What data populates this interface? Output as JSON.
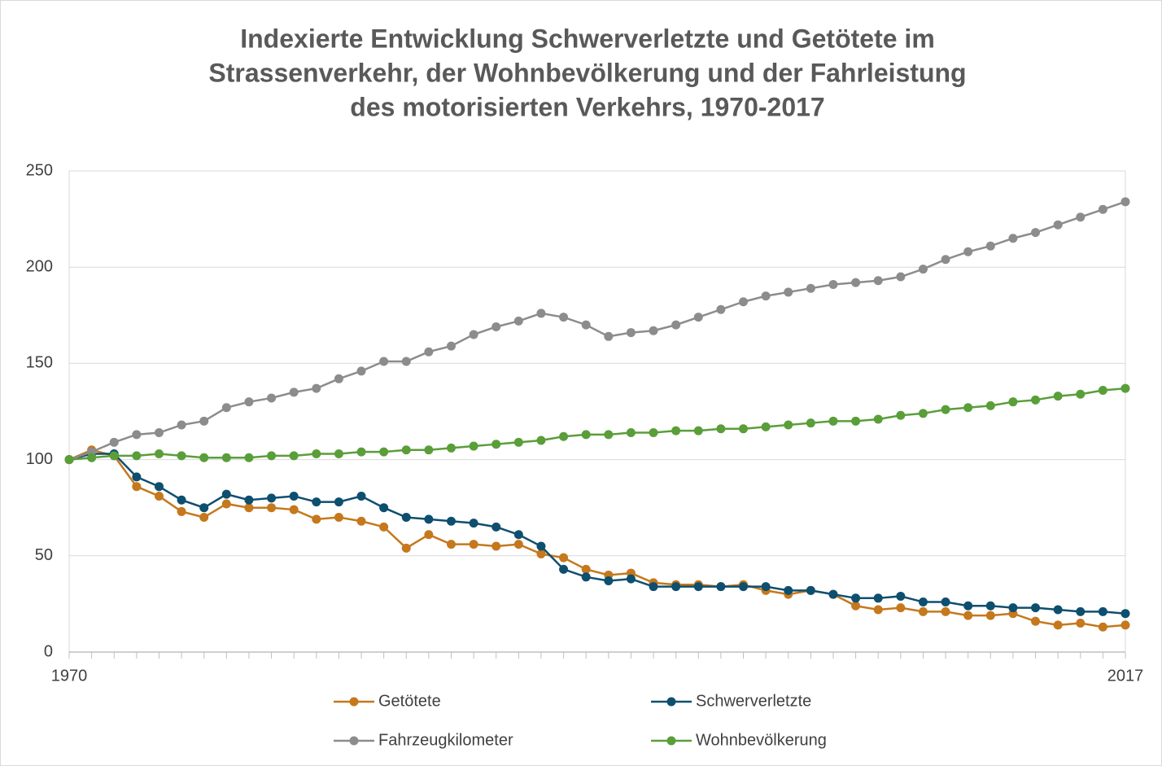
{
  "chart_data": {
    "type": "line",
    "title": [
      "Indexierte Entwicklung Schwerverletzte und Getötete im",
      "Strassenverkehr, der Wohnbevölkerung und der Fahrleistung",
      "des motorisierten Verkehrs, 1970-2017"
    ],
    "x": [
      1970,
      1971,
      1972,
      1973,
      1974,
      1975,
      1976,
      1977,
      1978,
      1979,
      1980,
      1981,
      1982,
      1983,
      1984,
      1985,
      1986,
      1987,
      1988,
      1989,
      1990,
      1991,
      1992,
      1993,
      1994,
      1995,
      1996,
      1997,
      1998,
      1999,
      2000,
      2001,
      2002,
      2003,
      2004,
      2005,
      2006,
      2007,
      2008,
      2009,
      2010,
      2011,
      2012,
      2013,
      2014,
      2015,
      2016,
      2017
    ],
    "xlim": [
      1970,
      2017
    ],
    "xticks": [
      1970,
      2017
    ],
    "ylim": [
      0,
      250
    ],
    "yticks": [
      0,
      50,
      100,
      150,
      200,
      250
    ],
    "grid": true,
    "series": [
      {
        "name": "Getötete",
        "color": "#c5781c",
        "values": [
          100,
          105,
          102,
          86,
          81,
          73,
          70,
          77,
          75,
          75,
          74,
          69,
          70,
          68,
          65,
          54,
          61,
          56,
          56,
          55,
          56,
          51,
          49,
          43,
          40,
          41,
          36,
          35,
          35,
          34,
          35,
          32,
          30,
          32,
          30,
          24,
          22,
          23,
          21,
          21,
          19,
          19,
          20,
          16,
          14,
          15,
          13,
          14
        ]
      },
      {
        "name": "Schwerverletzte",
        "color": "#0e4f6f",
        "values": [
          100,
          103,
          103,
          91,
          86,
          79,
          75,
          82,
          79,
          80,
          81,
          78,
          78,
          81,
          75,
          70,
          69,
          68,
          67,
          65,
          61,
          55,
          43,
          39,
          37,
          38,
          34,
          34,
          34,
          34,
          34,
          34,
          32,
          32,
          30,
          28,
          28,
          29,
          26,
          26,
          24,
          24,
          23,
          23,
          22,
          21,
          21,
          20
        ]
      },
      {
        "name": "Fahrzeugkilometer",
        "color": "#8c8c8c",
        "values": [
          100,
          104,
          109,
          113,
          114,
          118,
          120,
          127,
          130,
          132,
          135,
          137,
          142,
          146,
          151,
          151,
          156,
          159,
          165,
          169,
          172,
          176,
          174,
          170,
          164,
          166,
          167,
          170,
          174,
          178,
          182,
          185,
          187,
          189,
          191,
          192,
          193,
          195,
          199,
          204,
          208,
          211,
          215,
          218,
          222,
          226,
          230,
          234
        ]
      },
      {
        "name": "Wohnbevölkerung",
        "color": "#5a9e3a",
        "values": [
          100,
          101,
          102,
          102,
          103,
          102,
          101,
          101,
          101,
          102,
          102,
          103,
          103,
          104,
          104,
          105,
          105,
          106,
          107,
          108,
          109,
          110,
          112,
          113,
          113,
          114,
          114,
          115,
          115,
          116,
          116,
          117,
          118,
          119,
          120,
          120,
          121,
          123,
          124,
          126,
          127,
          128,
          130,
          131,
          133,
          134,
          136,
          137
        ]
      }
    ]
  }
}
